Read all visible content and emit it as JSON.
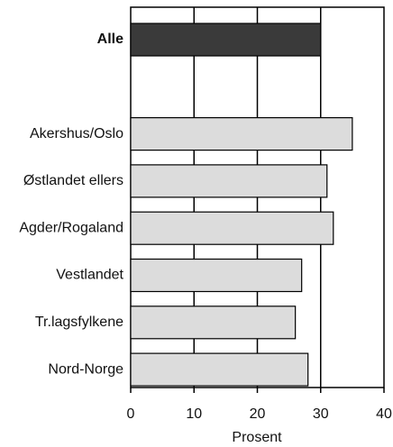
{
  "chart_data": {
    "type": "bar",
    "orientation": "horizontal",
    "categories": [
      "Alle",
      null,
      "Akershus/Oslo",
      "Østlandet ellers",
      "Agder/Rogaland",
      "Vestlandet",
      "Tr.lagsfylkene",
      "Nord-Norge"
    ],
    "values": [
      30,
      null,
      35,
      31,
      32,
      27,
      26,
      28
    ],
    "colors": [
      "#3a3a3a",
      null,
      "#dcdcdc",
      "#dcdcdc",
      "#dcdcdc",
      "#dcdcdc",
      "#dcdcdc",
      "#dcdcdc"
    ],
    "bold_labels": [
      true,
      false,
      false,
      false,
      false,
      false,
      false,
      false
    ],
    "xlabel": "Prosent",
    "xlim": [
      0,
      40
    ],
    "xticks": [
      0,
      10,
      20,
      30,
      40
    ],
    "grid": true
  }
}
